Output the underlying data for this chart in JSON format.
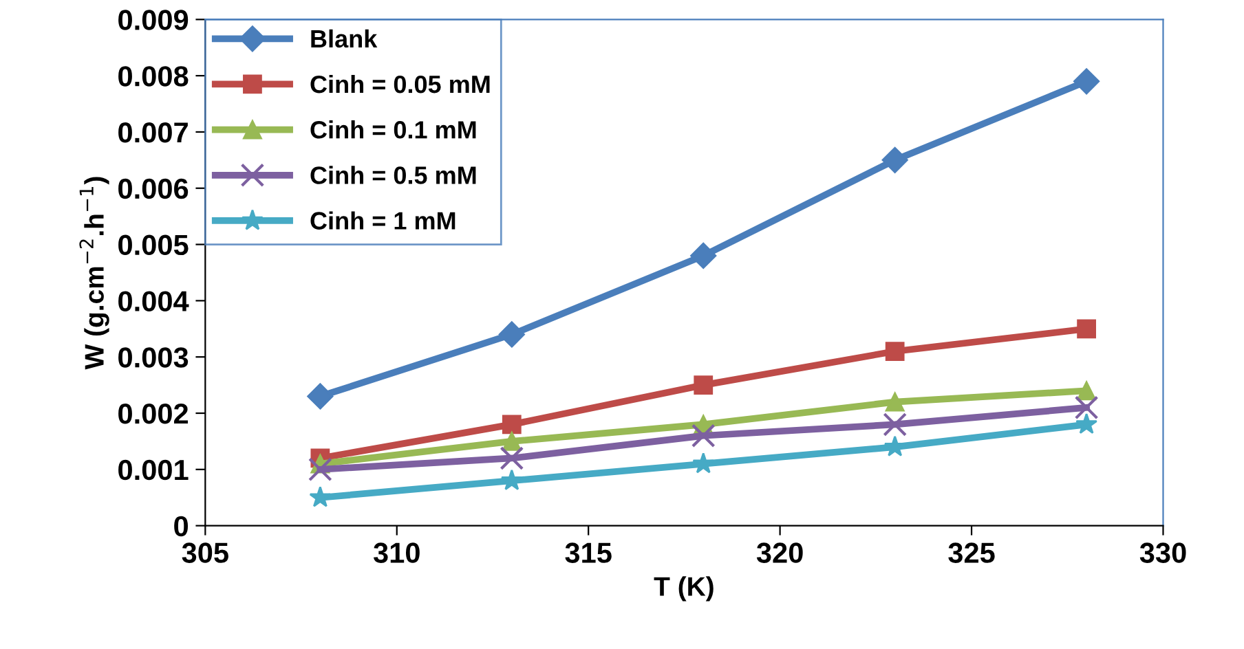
{
  "chart_data": {
    "type": "line",
    "xlabel": "T (K)",
    "ylabel": "W (g.cm$^{−2}$.h$^{−1}$)",
    "x": [
      308,
      313,
      318,
      323,
      328
    ],
    "series": [
      {
        "name": "Blank",
        "color": "#4a7ebb",
        "marker": "diamond",
        "values": [
          0.0023,
          0.0034,
          0.0048,
          0.0065,
          0.0079
        ]
      },
      {
        "name": "Cinh = 0.05 mM",
        "color": "#be4b48",
        "marker": "square",
        "values": [
          0.0012,
          0.0018,
          0.0025,
          0.0031,
          0.0035
        ]
      },
      {
        "name": "Cinh = 0.1 mM",
        "color": "#98b954",
        "marker": "triangle",
        "values": [
          0.0011,
          0.0015,
          0.0018,
          0.0022,
          0.0024
        ]
      },
      {
        "name": "Cinh = 0.5 mM",
        "color": "#7d60a0",
        "marker": "cross",
        "values": [
          0.001,
          0.0012,
          0.0016,
          0.0018,
          0.0021
        ]
      },
      {
        "name": "Cinh = 1 mM",
        "color": "#46aac5",
        "marker": "star",
        "values": [
          0.0005,
          0.0008,
          0.0011,
          0.0014,
          0.0018
        ]
      }
    ],
    "xlim": [
      305,
      330
    ],
    "xticks": [
      305,
      310,
      315,
      320,
      325,
      330
    ],
    "ylim": [
      0,
      0.009
    ],
    "yticks": [
      0,
      0.001,
      0.002,
      0.003,
      0.004,
      0.005,
      0.006,
      0.007,
      0.008,
      0.009
    ],
    "grid": false,
    "legend": "top left",
    "line_style": "solid"
  }
}
